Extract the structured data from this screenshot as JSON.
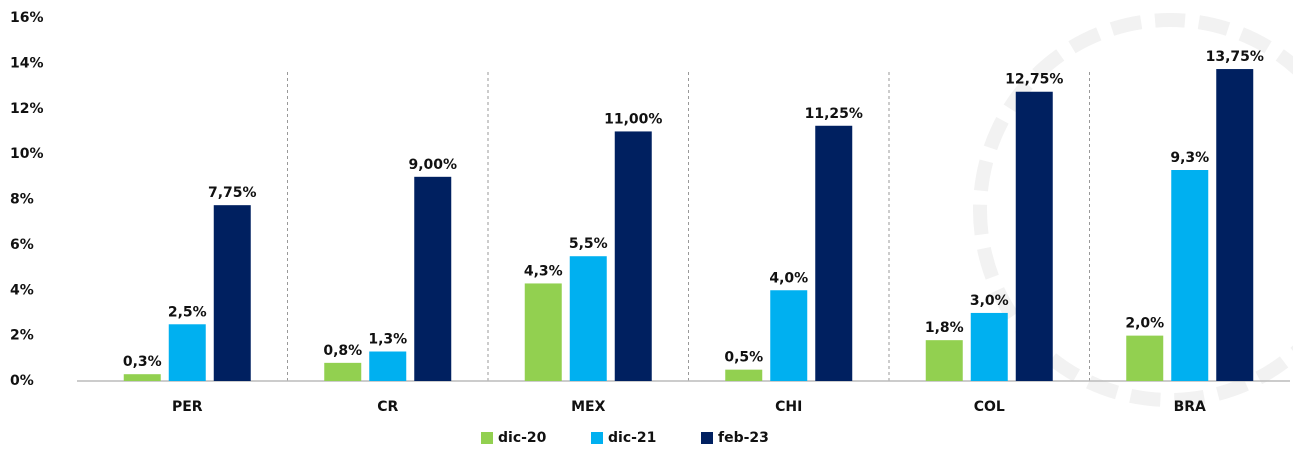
{
  "chart_data": {
    "type": "bar",
    "categories": [
      "PER",
      "CR",
      "MEX",
      "CHI",
      "COL",
      "BRA"
    ],
    "series": [
      {
        "name": "dic-20",
        "color": "#92d050",
        "values": [
          0.3,
          0.8,
          4.3,
          0.5,
          1.8,
          2.0
        ],
        "value_labels": [
          "0,3%",
          "0,8%",
          "4,3%",
          "0,5%",
          "1,8%",
          "2,0%"
        ]
      },
      {
        "name": "dic-21",
        "color": "#00b0f0",
        "values": [
          2.5,
          1.3,
          5.5,
          4.0,
          3.0,
          9.3
        ],
        "value_labels": [
          "2,5%",
          "1,3%",
          "5,5%",
          "4,0%",
          "3,0%",
          "9,3%"
        ]
      },
      {
        "name": "feb-23",
        "color": "#002060",
        "values": [
          7.75,
          9.0,
          11.0,
          11.25,
          12.75,
          13.75
        ],
        "value_labels": [
          "7,75%",
          "9,00%",
          "11,00%",
          "11,25%",
          "12,75%",
          "13,75%"
        ]
      }
    ],
    "ylim": [
      0,
      16
    ],
    "yticks": [
      {
        "value": 0,
        "label": "0%"
      },
      {
        "value": 2,
        "label": "2%"
      },
      {
        "value": 4,
        "label": "4%"
      },
      {
        "value": 6,
        "label": "6%"
      },
      {
        "value": 8,
        "label": "8%"
      },
      {
        "value": 10,
        "label": "10%"
      },
      {
        "value": 12,
        "label": "12%"
      },
      {
        "value": 14,
        "label": "14%"
      },
      {
        "value": 16,
        "label": "16%"
      }
    ],
    "grid": false,
    "legend": "bottom"
  }
}
